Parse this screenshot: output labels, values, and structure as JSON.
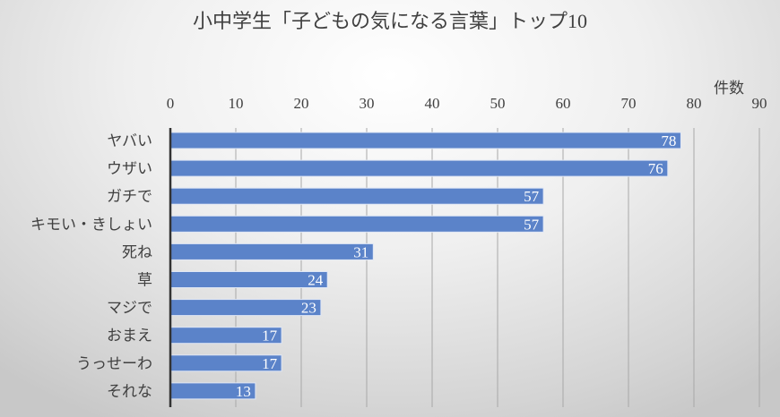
{
  "chart_data": {
    "type": "bar",
    "orientation": "horizontal",
    "title": "小中学生「子どもの気になる言葉」トップ10",
    "xlabel": "件数",
    "ylabel": "",
    "xlim": [
      0,
      90
    ],
    "xticks": [
      0,
      10,
      20,
      30,
      40,
      50,
      60,
      70,
      80,
      90
    ],
    "x_axis_position": "top",
    "grid": true,
    "categories": [
      "ヤバい",
      "ウザい",
      "ガチで",
      "キモい・きしょい",
      "死ね",
      "草",
      "マジで",
      "おまえ",
      "うっせーわ",
      "それな"
    ],
    "values": [
      78,
      76,
      57,
      57,
      31,
      24,
      23,
      17,
      17,
      13
    ],
    "data_labels": true,
    "bar_color": "#5b83c9",
    "gridline_color": "#a8a8a8"
  }
}
